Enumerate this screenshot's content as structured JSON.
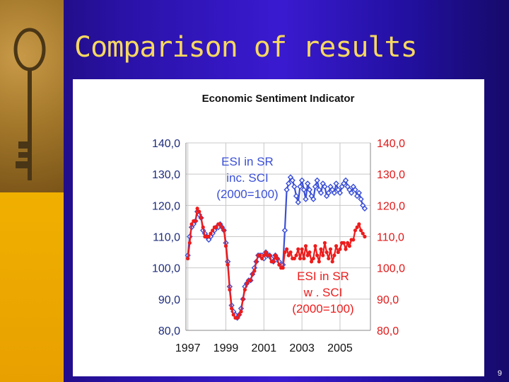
{
  "slide": {
    "title": "Comparison of results",
    "page_number": "9"
  },
  "colors": {
    "background": "#2a12a8",
    "sidebar": "#f0b000",
    "title_text": "#f6d860",
    "series_blue": "#3a4fd6",
    "series_red": "#ee1c1c"
  },
  "chart_data": {
    "type": "line",
    "title": "Economic Sentiment Indicator",
    "xlabel": "",
    "ylabel": "",
    "x_ticks": [
      "1997",
      "1999",
      "2001",
      "2003",
      "2005"
    ],
    "y_ticks": [
      "80,0",
      "90,0",
      "100,0",
      "110,0",
      "120,0",
      "130,0",
      "140,0"
    ],
    "xlim": [
      1996.9,
      2006.6
    ],
    "ylim": [
      80,
      140
    ],
    "grid": true,
    "annotations": [
      {
        "lines": [
          "ESI in SR",
          "inc. SCI",
          "(2000=100)"
        ],
        "color": "#3a4fd6"
      },
      {
        "lines": [
          "ESI in SR",
          "w . SCI",
          "(2000=100)"
        ],
        "color": "#ee1c1c"
      }
    ],
    "series": [
      {
        "color": "#3a4fd6",
        "marker": "diamond-open",
        "x": [
          1997.0,
          1997.1,
          1997.2,
          1997.3,
          1997.4,
          1997.5,
          1997.6,
          1997.7,
          1997.8,
          1997.9,
          1998.0,
          1998.1,
          1998.2,
          1998.3,
          1998.4,
          1998.5,
          1998.6,
          1998.7,
          1998.8,
          1998.9,
          1999.0,
          1999.1,
          1999.2,
          1999.3,
          1999.4,
          1999.5,
          1999.6,
          1999.7,
          1999.8,
          1999.9,
          2000.0,
          2000.1,
          2000.2,
          2000.3,
          2000.4,
          2000.5,
          2000.6,
          2000.7,
          2000.8,
          2000.9,
          2001.0,
          2001.1,
          2001.2,
          2001.3,
          2001.4,
          2001.5,
          2001.6,
          2001.7,
          2001.8,
          2001.9,
          2002.0,
          2002.1,
          2002.2,
          2002.3,
          2002.4,
          2002.5,
          2002.6,
          2002.7,
          2002.8,
          2002.9,
          2003.0,
          2003.1,
          2003.2,
          2003.3,
          2003.4,
          2003.5,
          2003.6,
          2003.7,
          2003.8,
          2003.9,
          2004.0,
          2004.1,
          2004.2,
          2004.3,
          2004.4,
          2004.5,
          2004.6,
          2004.7,
          2004.8,
          2004.9,
          2005.0,
          2005.1,
          2005.2,
          2005.3,
          2005.4,
          2005.5,
          2005.6,
          2005.7,
          2005.8,
          2005.9,
          2006.0,
          2006.1,
          2006.2,
          2006.3
        ],
        "values": [
          104,
          110,
          113,
          114,
          115,
          118,
          117,
          116,
          112,
          111,
          110,
          109,
          110,
          111,
          112,
          113,
          113,
          114,
          113,
          112,
          108,
          102,
          94,
          88,
          86,
          85,
          84,
          85,
          87,
          90,
          94,
          95,
          96,
          96,
          98,
          100,
          102,
          104,
          104,
          104,
          103,
          105,
          104,
          104,
          103,
          102,
          104,
          103,
          102,
          101,
          101,
          112,
          125,
          127,
          129,
          128,
          126,
          123,
          121,
          126,
          128,
          125,
          122,
          127,
          125,
          123,
          122,
          126,
          128,
          125,
          124,
          127,
          126,
          123,
          124,
          126,
          125,
          124,
          127,
          125,
          124,
          126,
          127,
          128,
          126,
          125,
          124,
          126,
          125,
          123,
          124,
          122,
          120,
          119
        ]
      },
      {
        "color": "#ee1c1c",
        "marker": "circle-filled",
        "x": [
          1997.0,
          1997.1,
          1997.2,
          1997.3,
          1997.4,
          1997.5,
          1997.6,
          1997.7,
          1997.8,
          1997.9,
          1998.0,
          1998.1,
          1998.2,
          1998.3,
          1998.4,
          1998.5,
          1998.6,
          1998.7,
          1998.8,
          1998.9,
          1999.0,
          1999.1,
          1999.2,
          1999.3,
          1999.4,
          1999.5,
          1999.6,
          1999.7,
          1999.8,
          1999.9,
          2000.0,
          2000.1,
          2000.2,
          2000.3,
          2000.4,
          2000.5,
          2000.6,
          2000.7,
          2000.8,
          2000.9,
          2001.0,
          2001.1,
          2001.2,
          2001.3,
          2001.4,
          2001.5,
          2001.6,
          2001.7,
          2001.8,
          2001.9,
          2002.0,
          2002.1,
          2002.2,
          2002.3,
          2002.4,
          2002.5,
          2002.6,
          2002.7,
          2002.8,
          2002.9,
          2003.0,
          2003.1,
          2003.2,
          2003.3,
          2003.4,
          2003.5,
          2003.6,
          2003.7,
          2003.8,
          2003.9,
          2004.0,
          2004.1,
          2004.2,
          2004.3,
          2004.4,
          2004.5,
          2004.6,
          2004.7,
          2004.8,
          2004.9,
          2005.0,
          2005.1,
          2005.2,
          2005.3,
          2005.4,
          2005.5,
          2005.6,
          2005.7,
          2005.8,
          2005.9,
          2006.0,
          2006.1,
          2006.2,
          2006.3
        ],
        "values": [
          103,
          108,
          114,
          115,
          115,
          119,
          118,
          116,
          113,
          110,
          110,
          110,
          111,
          112,
          113,
          113,
          114,
          114,
          113,
          112,
          107,
          101,
          93,
          87,
          85,
          84,
          84,
          85,
          86,
          90,
          93,
          95,
          96,
          96,
          98,
          99,
          102,
          104,
          104,
          103,
          104,
          105,
          104,
          104,
          102,
          102,
          104,
          103,
          101,
          100,
          100,
          105,
          106,
          104,
          105,
          103,
          103,
          104,
          106,
          103,
          106,
          103,
          107,
          104,
          105,
          102,
          103,
          107,
          104,
          102,
          106,
          104,
          108,
          105,
          103,
          106,
          102,
          104,
          107,
          105,
          106,
          108,
          108,
          106,
          108,
          107,
          109,
          109,
          112,
          113,
          114,
          112,
          111,
          110
        ]
      }
    ]
  }
}
